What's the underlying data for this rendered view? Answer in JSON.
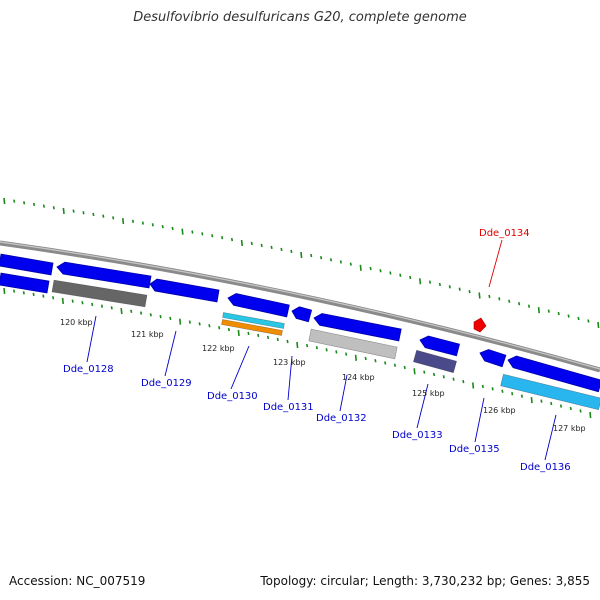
{
  "title": "Desulfovibrio desulfuricans G20, complete genome",
  "accession": "Accession: NC_007519",
  "summary": "Topology: circular; Length: 3,730,232 bp; Genes: 3,855",
  "colors": {
    "backbone": "#8a8a8a",
    "cds": "#0000ee",
    "gene_label": "#0000cc",
    "highlight_label": "#dd0000",
    "highlight_marker": "#ee0000",
    "tick": "#1a8a1a",
    "rna_cyan": "#29c6e6",
    "rna_orange": "#f08c00",
    "rna_gray": "#666666",
    "rna_lightgray": "#bfbfbf",
    "rna_purple": "#4a4a8a",
    "rna_lightblue": "#29b6ee"
  },
  "kbp_labels": [
    "120 kbp",
    "121 kbp",
    "122 kbp",
    "123 kbp",
    "124 kbp",
    "125 kbp",
    "126 kbp",
    "127 kbp"
  ],
  "gene_labels": [
    {
      "name": "Dde_0128",
      "highlight": false
    },
    {
      "name": "Dde_0129",
      "highlight": false
    },
    {
      "name": "Dde_0130",
      "highlight": false
    },
    {
      "name": "Dde_0131",
      "highlight": false
    },
    {
      "name": "Dde_0132",
      "highlight": false
    },
    {
      "name": "Dde_0133",
      "highlight": false
    },
    {
      "name": "Dde_0134",
      "highlight": true
    },
    {
      "name": "Dde_0135",
      "highlight": false
    },
    {
      "name": "Dde_0136",
      "highlight": false
    }
  ]
}
